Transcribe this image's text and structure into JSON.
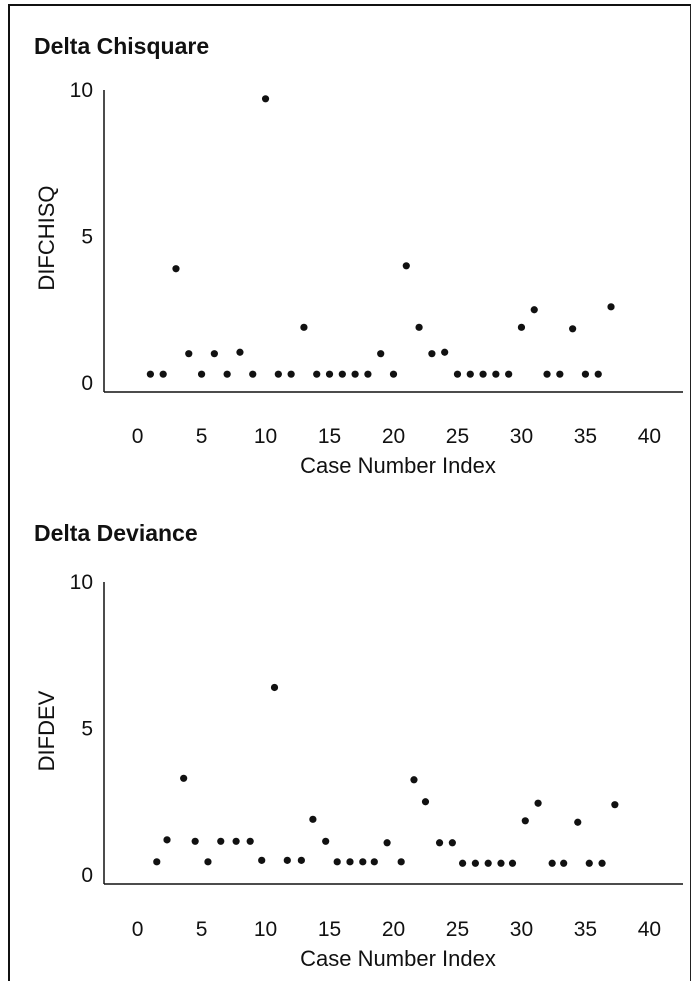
{
  "chart_data": [
    {
      "type": "scatter",
      "title": "Delta Chisquare",
      "xlabel": "Case Number   Index",
      "ylabel": "DIFCHISQ",
      "xlim": [
        -2,
        42
      ],
      "ylim": [
        0,
        10
      ],
      "xticks": [
        0,
        5,
        10,
        15,
        20,
        25,
        30,
        35,
        40
      ],
      "yticks": [
        0,
        5,
        10
      ],
      "x": [
        1,
        2,
        3,
        4,
        5,
        6,
        7,
        8,
        9,
        10,
        11,
        12,
        13,
        14,
        15,
        16,
        17,
        18,
        19,
        20,
        21,
        22,
        23,
        24,
        25,
        26,
        27,
        28,
        29,
        30,
        31,
        32,
        33,
        34,
        35,
        36,
        37
      ],
      "y": [
        0.3,
        0.3,
        3.9,
        1.0,
        0.3,
        1.0,
        0.3,
        1.05,
        0.3,
        9.7,
        0.3,
        0.3,
        1.9,
        0.3,
        0.3,
        0.3,
        0.3,
        0.3,
        1.0,
        0.3,
        4.0,
        1.9,
        1.0,
        1.05,
        0.3,
        0.3,
        0.3,
        0.3,
        0.3,
        1.9,
        2.5,
        0.3,
        0.3,
        1.85,
        0.3,
        0.3,
        2.6
      ]
    },
    {
      "type": "scatter",
      "title": "Delta Deviance",
      "xlabel": "Case Number   Index",
      "ylabel": "DIFDEV",
      "xlim": [
        -2,
        42
      ],
      "ylim": [
        0,
        10
      ],
      "xticks": [
        0,
        5,
        10,
        15,
        20,
        25,
        30,
        35,
        40
      ],
      "yticks": [
        0,
        5,
        10
      ],
      "x": [
        1.5,
        2.3,
        3.6,
        4.5,
        5.5,
        6.5,
        7.7,
        8.8,
        9.7,
        10.7,
        11.7,
        12.8,
        13.7,
        14.7,
        15.6,
        16.6,
        17.6,
        18.5,
        19.5,
        20.6,
        21.6,
        22.5,
        23.6,
        24.6,
        25.4,
        26.4,
        27.4,
        28.4,
        29.3,
        30.3,
        31.3,
        32.4,
        33.3,
        34.4,
        35.3,
        36.3,
        37.3
      ],
      "y": [
        0.45,
        1.2,
        3.3,
        1.15,
        0.45,
        1.15,
        1.15,
        1.15,
        0.5,
        6.4,
        0.5,
        0.5,
        1.9,
        1.15,
        0.45,
        0.45,
        0.45,
        0.45,
        1.1,
        0.45,
        3.25,
        2.5,
        1.1,
        1.1,
        0.4,
        0.4,
        0.4,
        0.4,
        0.4,
        1.85,
        2.45,
        0.4,
        0.4,
        1.8,
        0.4,
        0.4,
        2.4
      ]
    }
  ]
}
